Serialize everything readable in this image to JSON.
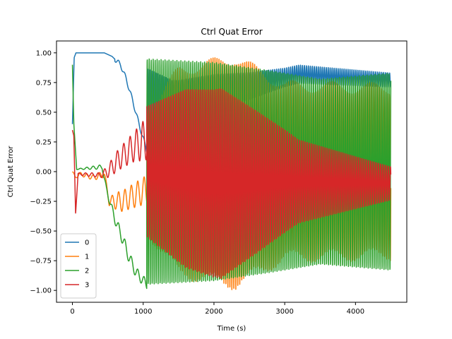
{
  "chart_data": {
    "type": "line",
    "title": "Ctrl Quat Error",
    "xlabel": "Time (s)",
    "ylabel": "Ctrl Quat Error",
    "xlim": [
      -225,
      4725
    ],
    "ylim": [
      -1.1,
      1.1
    ],
    "xticks": [
      0,
      1000,
      2000,
      3000,
      4000
    ],
    "xtick_labels": [
      "0",
      "1000",
      "2000",
      "3000",
      "4000"
    ],
    "yticks": [
      -1.0,
      -0.75,
      -0.5,
      -0.25,
      0.0,
      0.25,
      0.5,
      0.75,
      1.0
    ],
    "ytick_labels": [
      "−1.00",
      "−0.75",
      "−0.50",
      "−0.25",
      "0.00",
      "0.25",
      "0.50",
      "0.75",
      "1.00"
    ],
    "grid": false,
    "legend_position": "lower-left",
    "series": [
      {
        "name": "0",
        "color": "#1f77b4",
        "description": "Starts near 0.4, jumps to 1.0 by t≈50, stays at 1.0 until ~t≈450, decays to ~0.2 by t≈1050, then oscillates with envelope ~0.55–0.95 settling to ~0.72–0.90 by 4500",
        "keypoints": [
          [
            0,
            0.4
          ],
          [
            30,
            0.96
          ],
          [
            50,
            1.0
          ],
          [
            450,
            1.0
          ],
          [
            600,
            0.95
          ],
          [
            750,
            0.8
          ],
          [
            850,
            0.6
          ],
          [
            950,
            0.4
          ],
          [
            1050,
            0.2
          ],
          [
            1100,
            0.7
          ],
          [
            1500,
            0.75
          ],
          [
            2000,
            0.8
          ],
          [
            2500,
            0.85
          ],
          [
            3000,
            0.88
          ],
          [
            3500,
            0.88
          ],
          [
            4000,
            0.85
          ],
          [
            4500,
            0.78
          ]
        ]
      },
      {
        "name": "1",
        "color": "#ff7f0e",
        "description": "Near 0 initially with small wiggles, dips to ~-0.25 around t≈500, oscillates around -0.2 to -0.3 until ~1050, then large oscillations spanning ~-1 to 1 through ~2500, then split bands near 0.75 and -0.7 to t=4500",
        "keypoints": [
          [
            0,
            0.0
          ],
          [
            100,
            -0.05
          ],
          [
            200,
            -0.0
          ],
          [
            400,
            -0.05
          ],
          [
            500,
            -0.25
          ],
          [
            700,
            -0.2
          ],
          [
            1000,
            -0.2
          ],
          [
            1100,
            0.6
          ],
          [
            1500,
            -0.8
          ],
          [
            2000,
            0.9
          ],
          [
            2500,
            -0.9
          ],
          [
            3000,
            0.8
          ],
          [
            3500,
            -0.7
          ],
          [
            4000,
            0.75
          ],
          [
            4500,
            -0.65
          ]
        ]
      },
      {
        "name": "2",
        "color": "#2ca02c",
        "description": "Starts ~0.9 then drops to ~0.02 by t≈50, hovers near 0 until ~450, decays to ~-0.95 by t≈1050, then wide oscillations spanning ~-1 to 0.95 persisting to t=4500 (envelope ±0.8 near the end)",
        "keypoints": [
          [
            0,
            0.9
          ],
          [
            30,
            0.3
          ],
          [
            60,
            0.02
          ],
          [
            400,
            0.03
          ],
          [
            500,
            -0.2
          ],
          [
            700,
            -0.5
          ],
          [
            900,
            -0.85
          ],
          [
            1050,
            -0.95
          ],
          [
            1100,
            0.95
          ],
          [
            1500,
            -0.9
          ],
          [
            2000,
            0.9
          ],
          [
            2500,
            -0.85
          ],
          [
            3000,
            0.8
          ],
          [
            3500,
            -0.78
          ],
          [
            4000,
            0.82
          ],
          [
            4500,
            -0.78
          ]
        ]
      },
      {
        "name": "3",
        "color": "#d62728",
        "description": "Starts ~0.35, drops to ~-0.05, grows into oscillation around 0.2–0.35 by t≈1000, then wide oscillations spanning ~-1 to 0.7 through ~2500, envelope narrows to ~±0.3 around -0.05 by t=4500",
        "keypoints": [
          [
            0,
            0.35
          ],
          [
            40,
            -0.4
          ],
          [
            80,
            -0.02
          ],
          [
            400,
            -0.03
          ],
          [
            600,
            0.1
          ],
          [
            800,
            0.2
          ],
          [
            1000,
            0.3
          ],
          [
            1100,
            -0.5
          ],
          [
            1500,
            0.65
          ],
          [
            2000,
            -0.95
          ],
          [
            2500,
            0.6
          ],
          [
            3000,
            -0.3
          ],
          [
            3500,
            0.25
          ],
          [
            4000,
            -0.2
          ],
          [
            4500,
            -0.15
          ]
        ]
      }
    ]
  }
}
